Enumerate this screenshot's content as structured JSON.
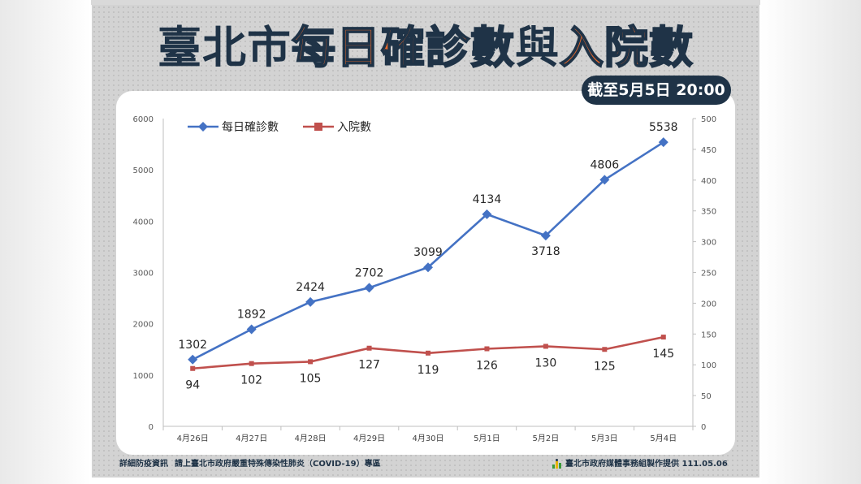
{
  "title": {
    "city": "臺北市",
    "daily": "每日確診數",
    "and": "與",
    "hosp": "入院數"
  },
  "date_badge": "截至5月5日 20:00",
  "footer": {
    "left_a": "詳細防疫資訊",
    "left_b": "請上臺北市政府嚴重特殊傳染性肺炎（COVID-19）專區",
    "right": "臺北市政府媒體事務組製作提供 111.05.06"
  },
  "colors": {
    "daily": "#4472c4",
    "hosp": "#c0504d",
    "title_dark": "#1f3347",
    "title_accent": "#ea6a2c"
  },
  "chart_data": {
    "type": "line",
    "categories": [
      "4月26日",
      "4月27日",
      "4月28日",
      "4月29日",
      "4月30日",
      "5月1日",
      "5月2日",
      "5月3日",
      "5月4日"
    ],
    "series": [
      {
        "name": "每日確診數",
        "axis": "left",
        "marker": "diamond",
        "values": [
          1302,
          1892,
          2424,
          2702,
          3099,
          4134,
          3718,
          4806,
          5538
        ]
      },
      {
        "name": "入院數",
        "axis": "right",
        "marker": "square",
        "values": [
          94,
          102,
          105,
          127,
          119,
          126,
          130,
          125,
          145
        ]
      }
    ],
    "y_left": {
      "min": 0,
      "max": 6000,
      "ticks": [
        0,
        1000,
        2000,
        3000,
        4000,
        5000,
        6000
      ]
    },
    "y_right": {
      "min": 0,
      "max": 500,
      "ticks": [
        0,
        50,
        100,
        150,
        200,
        250,
        300,
        350,
        400,
        450,
        500
      ]
    },
    "legend": "top-left",
    "grid": false
  }
}
